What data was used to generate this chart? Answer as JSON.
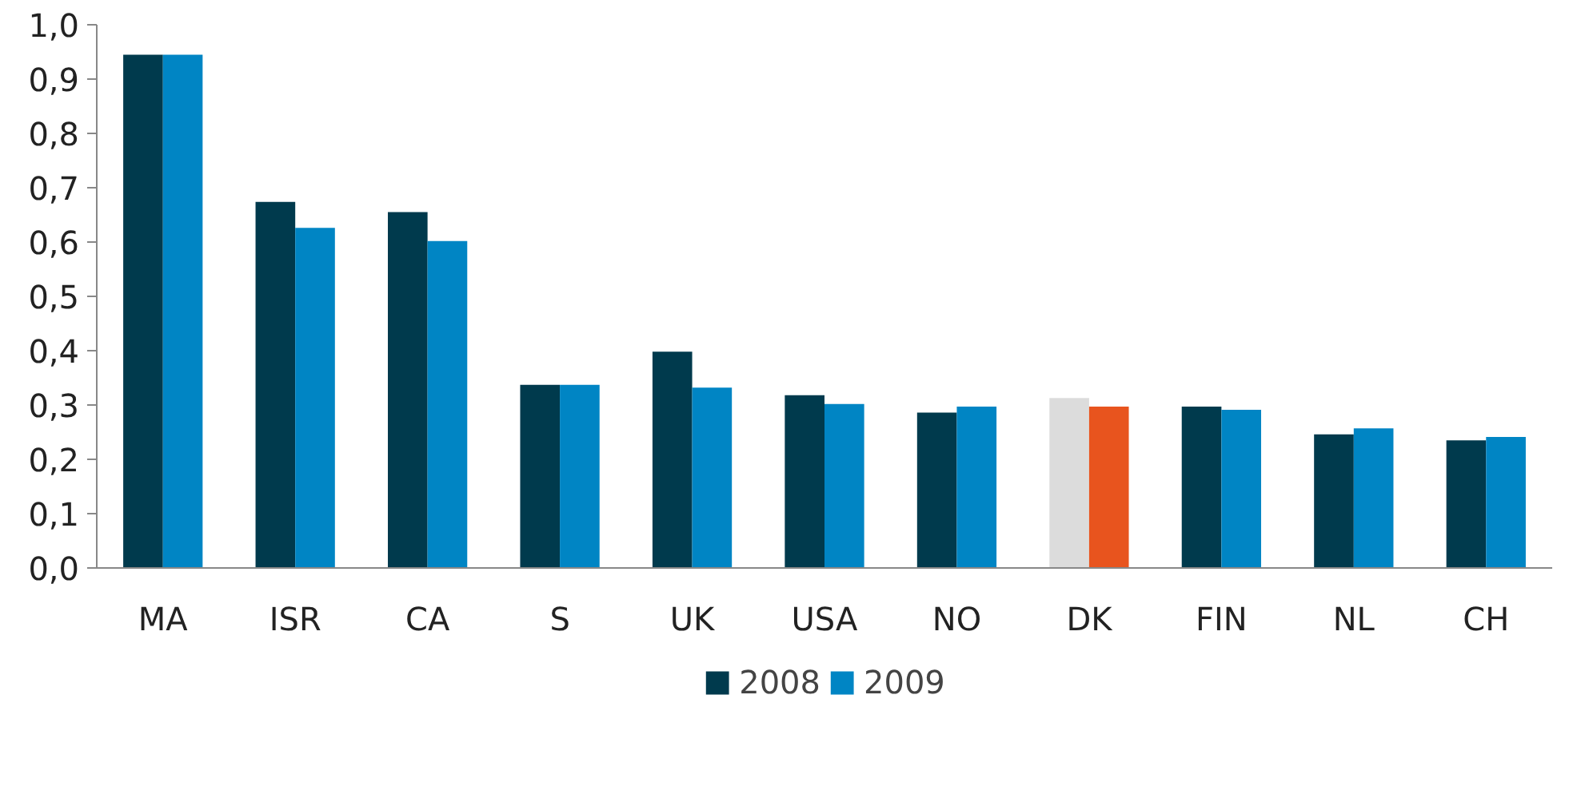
{
  "chart_data": {
    "type": "bar",
    "categories": [
      "MA",
      "ISR",
      "CA",
      "S",
      "UK",
      "USA",
      "NO",
      "DK",
      "FIN",
      "NL",
      "CH"
    ],
    "series": [
      {
        "name": "2008",
        "color": "#003a4d",
        "colors": [
          "#003a4d",
          "#003a4d",
          "#003a4d",
          "#003a4d",
          "#003a4d",
          "#003a4d",
          "#003a4d",
          "#dcdcdc",
          "#003a4d",
          "#003a4d",
          "#003a4d"
        ],
        "values": [
          0.945,
          0.674,
          0.655,
          0.337,
          0.398,
          0.318,
          0.286,
          0.313,
          0.297,
          0.246,
          0.235
        ]
      },
      {
        "name": "2009",
        "color": "#0085c4",
        "colors": [
          "#0085c4",
          "#0085c4",
          "#0085c4",
          "#0085c4",
          "#0085c4",
          "#0085c4",
          "#0085c4",
          "#e8541e",
          "#0085c4",
          "#0085c4",
          "#0085c4"
        ],
        "values": [
          0.945,
          0.626,
          0.602,
          0.337,
          0.332,
          0.302,
          0.297,
          0.297,
          0.291,
          0.257,
          0.241
        ]
      }
    ],
    "ylim": [
      0,
      1
    ],
    "yticks": [
      {
        "value": 0,
        "label": "0,0"
      },
      {
        "value": 0.1,
        "label": "0,1"
      },
      {
        "value": 0.2,
        "label": "0,2"
      },
      {
        "value": 0.3,
        "label": "0,3"
      },
      {
        "value": 0.4,
        "label": "0,4"
      },
      {
        "value": 0.5,
        "label": "0,5"
      },
      {
        "value": 0.6,
        "label": "0,6"
      },
      {
        "value": 0.7,
        "label": "0,7"
      },
      {
        "value": 0.8,
        "label": "0,8"
      },
      {
        "value": 0.9,
        "label": "0,9"
      },
      {
        "value": 1,
        "label": "1,0"
      }
    ],
    "grid": false,
    "legend": "bottom"
  }
}
